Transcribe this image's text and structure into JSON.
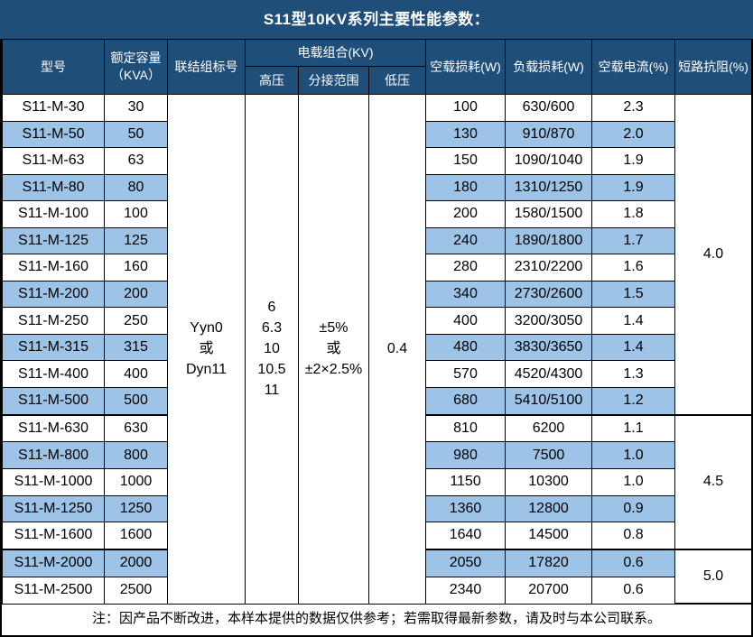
{
  "title": "S11型10KV系列主要性能参数：",
  "table": {
    "headers": {
      "model": "型号",
      "capacity_line1": "额定容量",
      "capacity_line2": "（KVA）",
      "vector_group": "联结组标号",
      "voltage_combo": "电载组合(KV)",
      "hv": "高压",
      "tap_range": "分接范围",
      "lv": "低压",
      "no_load_loss": "空载损耗(W)",
      "load_loss": "负载损耗(W)",
      "no_load_current": "空载电流(%)",
      "impedance": "短路抗阻(%)"
    },
    "merged": {
      "vector_group_lines": [
        "Yyn0",
        "或",
        "Dyn11"
      ],
      "hv_lines": [
        "6",
        "6.3",
        "10",
        "10.5",
        "11"
      ],
      "tap_range_lines": [
        "±5%",
        "或",
        "±2×2.5%"
      ],
      "lv_lines": [
        "0.4"
      ]
    },
    "rows": [
      {
        "model": "S11-M-30",
        "capacity": "30",
        "no_load_loss": "100",
        "load_loss": "630/600",
        "no_load_current": "2.3",
        "highlight": false
      },
      {
        "model": "S11-M-50",
        "capacity": "50",
        "no_load_loss": "130",
        "load_loss": "910/870",
        "no_load_current": "2.0",
        "highlight": true
      },
      {
        "model": "S11-M-63",
        "capacity": "63",
        "no_load_loss": "150",
        "load_loss": "1090/1040",
        "no_load_current": "1.9",
        "highlight": false
      },
      {
        "model": "S11-M-80",
        "capacity": "80",
        "no_load_loss": "180",
        "load_loss": "1310/1250",
        "no_load_current": "1.9",
        "highlight": true
      },
      {
        "model": "S11-M-100",
        "capacity": "100",
        "no_load_loss": "200",
        "load_loss": "1580/1500",
        "no_load_current": "1.8",
        "highlight": false
      },
      {
        "model": "S11-M-125",
        "capacity": "125",
        "no_load_loss": "240",
        "load_loss": "1890/1800",
        "no_load_current": "1.7",
        "highlight": true
      },
      {
        "model": "S11-M-160",
        "capacity": "160",
        "no_load_loss": "280",
        "load_loss": "2310/2200",
        "no_load_current": "1.6",
        "highlight": false
      },
      {
        "model": "S11-M-200",
        "capacity": "200",
        "no_load_loss": "340",
        "load_loss": "2730/2600",
        "no_load_current": "1.5",
        "highlight": true
      },
      {
        "model": "S11-M-250",
        "capacity": "250",
        "no_load_loss": "400",
        "load_loss": "3200/3050",
        "no_load_current": "1.4",
        "highlight": false
      },
      {
        "model": "S11-M-315",
        "capacity": "315",
        "no_load_loss": "480",
        "load_loss": "3830/3650",
        "no_load_current": "1.4",
        "highlight": true
      },
      {
        "model": "S11-M-400",
        "capacity": "400",
        "no_load_loss": "570",
        "load_loss": "4520/4300",
        "no_load_current": "1.3",
        "highlight": false
      },
      {
        "model": "S11-M-500",
        "capacity": "500",
        "no_load_loss": "680",
        "load_loss": "5410/5100",
        "no_load_current": "1.2",
        "highlight": true
      },
      {
        "model": "S11-M-630",
        "capacity": "630",
        "no_load_loss": "810",
        "load_loss": "6200",
        "no_load_current": "1.1",
        "highlight": false
      },
      {
        "model": "S11-M-800",
        "capacity": "800",
        "no_load_loss": "980",
        "load_loss": "7500",
        "no_load_current": "1.0",
        "highlight": true
      },
      {
        "model": "S11-M-1000",
        "capacity": "1000",
        "no_load_loss": "1150",
        "load_loss": "10300",
        "no_load_current": "1.0",
        "highlight": false
      },
      {
        "model": "S11-M-1250",
        "capacity": "1250",
        "no_load_loss": "1360",
        "load_loss": "12800",
        "no_load_current": "0.9",
        "highlight": true
      },
      {
        "model": "S11-M-1600",
        "capacity": "1600",
        "no_load_loss": "1640",
        "load_loss": "14500",
        "no_load_current": "0.8",
        "highlight": false
      },
      {
        "model": "S11-M-2000",
        "capacity": "2000",
        "no_load_loss": "2050",
        "load_loss": "17820",
        "no_load_current": "0.6",
        "highlight": true
      },
      {
        "model": "S11-M-2500",
        "capacity": "2500",
        "no_load_loss": "2340",
        "load_loss": "20700",
        "no_load_current": "0.6",
        "highlight": false
      }
    ],
    "impedance_groups": [
      {
        "value": "4.0",
        "span": 12
      },
      {
        "value": "4.5",
        "span": 5
      },
      {
        "value": "5.0",
        "span": 2
      }
    ]
  },
  "footer_note": "注：因产品不断改进，本样本提供的数据仅供参考；若需取得最新参数，请及时与本公司联系。",
  "colors": {
    "header_bg": "#1F4E79",
    "stripe_bg": "#9DC3E6",
    "border": "#000000",
    "title_fg": "#FFFFFF"
  }
}
